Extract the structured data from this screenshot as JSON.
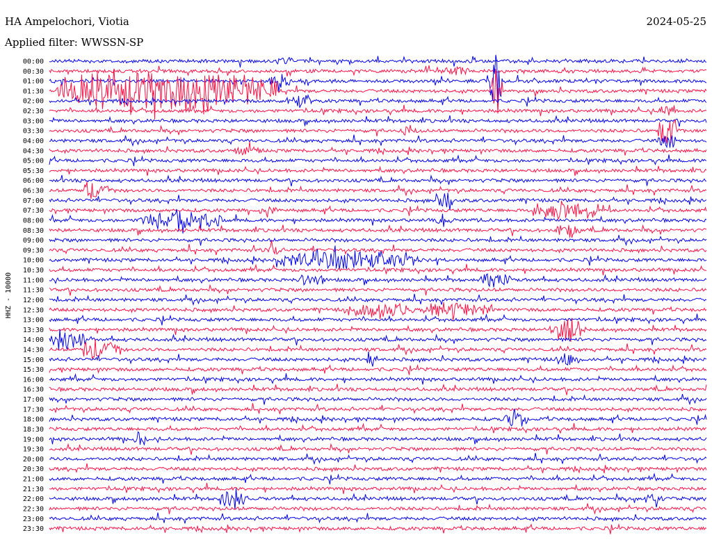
{
  "header": {
    "station": "HA Ampelochori, Viotia",
    "date": "2024-05-25",
    "filter": "Applied filter: WWSSN-SP"
  },
  "side_label": "HHZ - 10000",
  "colors": {
    "line_a": "#0000ee",
    "line_b": "#ff1144",
    "background": "#ffffff",
    "text": "#000000"
  },
  "chart_data": {
    "type": "helicorder",
    "title": "HA Ampelochori, Viotia",
    "subtitle": "Applied filter: WWSSN-SP",
    "ylabel": "HHZ - 10000",
    "row_interval_minutes": 30,
    "row_labels": [
      "00:00",
      "00:30",
      "01:00",
      "01:30",
      "02:00",
      "02:30",
      "03:00",
      "03:30",
      "04:00",
      "04:30",
      "05:00",
      "05:30",
      "06:00",
      "06:30",
      "07:00",
      "07:30",
      "08:00",
      "08:30",
      "09:00",
      "09:30",
      "10:00",
      "10:30",
      "11:00",
      "11:30",
      "12:00",
      "12:30",
      "13:00",
      "13:30",
      "14:00",
      "14:30",
      "15:00",
      "15:30",
      "16:00",
      "16:30",
      "17:00",
      "17:30",
      "18:00",
      "18:30",
      "19:00",
      "19:30",
      "20:00",
      "20:30",
      "21:00",
      "21:30",
      "22:00",
      "22:30",
      "23:00",
      "23:30"
    ],
    "series_colors": [
      "#0000ee",
      "#ff1144"
    ],
    "x_range": [
      0,
      1
    ],
    "events": [
      {
        "row": 0,
        "x": 0.36,
        "amp": 4,
        "dur": 0.02
      },
      {
        "row": 1,
        "x": 0.62,
        "amp": 5,
        "dur": 0.04
      },
      {
        "row": 2,
        "x": 0.68,
        "amp": 48,
        "dur": 0.01
      },
      {
        "row": 2,
        "x": 0.35,
        "amp": 10,
        "dur": 0.03
      },
      {
        "row": 3,
        "x": 0.18,
        "amp": 30,
        "dur": 0.33
      },
      {
        "row": 3,
        "x": 0.68,
        "amp": 40,
        "dur": 0.01
      },
      {
        "row": 4,
        "x": 0.38,
        "amp": 8,
        "dur": 0.03
      },
      {
        "row": 5,
        "x": 0.94,
        "amp": 12,
        "dur": 0.015
      },
      {
        "row": 7,
        "x": 0.94,
        "amp": 24,
        "dur": 0.02
      },
      {
        "row": 7,
        "x": 0.55,
        "amp": 6,
        "dur": 0.02
      },
      {
        "row": 8,
        "x": 0.94,
        "amp": 10,
        "dur": 0.02
      },
      {
        "row": 9,
        "x": 0.3,
        "amp": 7,
        "dur": 0.03
      },
      {
        "row": 13,
        "x": 0.07,
        "amp": 14,
        "dur": 0.03
      },
      {
        "row": 14,
        "x": 0.6,
        "amp": 22,
        "dur": 0.02
      },
      {
        "row": 15,
        "x": 0.79,
        "amp": 14,
        "dur": 0.1
      },
      {
        "row": 15,
        "x": 0.33,
        "amp": 8,
        "dur": 0.015
      },
      {
        "row": 16,
        "x": 0.2,
        "amp": 12,
        "dur": 0.12
      },
      {
        "row": 16,
        "x": 0.6,
        "amp": 8,
        "dur": 0.015
      },
      {
        "row": 17,
        "x": 0.79,
        "amp": 7,
        "dur": 0.03
      },
      {
        "row": 19,
        "x": 0.34,
        "amp": 12,
        "dur": 0.015
      },
      {
        "row": 20,
        "x": 0.45,
        "amp": 12,
        "dur": 0.2
      },
      {
        "row": 22,
        "x": 0.4,
        "amp": 8,
        "dur": 0.03
      },
      {
        "row": 22,
        "x": 0.68,
        "amp": 9,
        "dur": 0.04
      },
      {
        "row": 25,
        "x": 0.5,
        "amp": 10,
        "dur": 0.1
      },
      {
        "row": 25,
        "x": 0.62,
        "amp": 9,
        "dur": 0.1
      },
      {
        "row": 27,
        "x": 0.79,
        "amp": 14,
        "dur": 0.05
      },
      {
        "row": 28,
        "x": 0.03,
        "amp": 14,
        "dur": 0.04
      },
      {
        "row": 29,
        "x": 0.08,
        "amp": 16,
        "dur": 0.05
      },
      {
        "row": 30,
        "x": 0.49,
        "amp": 12,
        "dur": 0.01
      },
      {
        "row": 30,
        "x": 0.79,
        "amp": 9,
        "dur": 0.03
      },
      {
        "row": 36,
        "x": 0.71,
        "amp": 10,
        "dur": 0.03
      },
      {
        "row": 38,
        "x": 0.14,
        "amp": 12,
        "dur": 0.015
      },
      {
        "row": 44,
        "x": 0.28,
        "amp": 10,
        "dur": 0.04
      },
      {
        "row": 44,
        "x": 0.92,
        "amp": 9,
        "dur": 0.02
      }
    ]
  }
}
